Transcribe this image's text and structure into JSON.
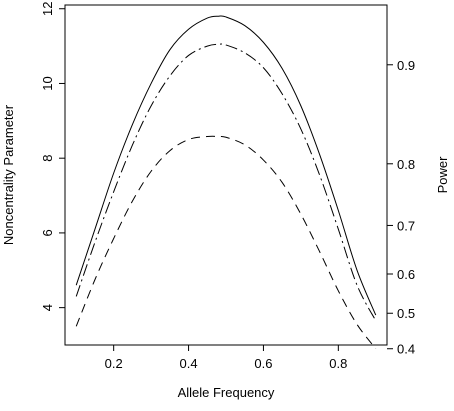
{
  "chart_data": {
    "type": "line",
    "xlabel": "Allele Frequency",
    "ylabel": "Noncentrality Parameter",
    "ylabel_right": "Power",
    "xlim": [
      0.07,
      0.93
    ],
    "ylim": [
      3.0,
      12.1
    ],
    "x_ticks": [
      0.2,
      0.4,
      0.6,
      0.8
    ],
    "x_tick_labels": [
      "0.2",
      "0.4",
      "0.6",
      "0.8"
    ],
    "y_ticks": [
      4,
      6,
      8,
      10,
      12
    ],
    "y_tick_labels": [
      "4",
      "6",
      "8",
      "10",
      "12"
    ],
    "right_ticks": [
      {
        "label": "0.9",
        "ncp": 10.5
      },
      {
        "label": "0.8",
        "ncp": 7.85
      },
      {
        "label": "0.7",
        "ncp": 6.2
      },
      {
        "label": "0.6",
        "ncp": 4.9
      },
      {
        "label": "0.5",
        "ncp": 3.85
      },
      {
        "label": "0.4",
        "ncp": 2.9
      }
    ],
    "grid": false,
    "legend": "none",
    "x": [
      0.1,
      0.15,
      0.2,
      0.25,
      0.3,
      0.35,
      0.4,
      0.45,
      0.48,
      0.5,
      0.55,
      0.6,
      0.65,
      0.7,
      0.75,
      0.8,
      0.85,
      0.9
    ],
    "series": [
      {
        "style": "solid",
        "values": [
          4.6,
          6.1,
          7.6,
          8.9,
          10.0,
          10.9,
          11.45,
          11.75,
          11.8,
          11.78,
          11.55,
          11.1,
          10.4,
          9.4,
          8.1,
          6.6,
          5.0,
          3.8
        ]
      },
      {
        "style": "dotdash",
        "values": [
          4.3,
          5.75,
          7.1,
          8.35,
          9.4,
          10.2,
          10.75,
          11.0,
          11.05,
          11.03,
          10.82,
          10.42,
          9.72,
          8.78,
          7.55,
          6.1,
          4.6,
          3.65
        ]
      },
      {
        "style": "dashed",
        "values": [
          3.5,
          4.75,
          5.85,
          6.85,
          7.65,
          8.2,
          8.5,
          8.58,
          8.58,
          8.56,
          8.36,
          7.95,
          7.35,
          6.5,
          5.5,
          4.45,
          3.55,
          2.9
        ]
      }
    ]
  }
}
